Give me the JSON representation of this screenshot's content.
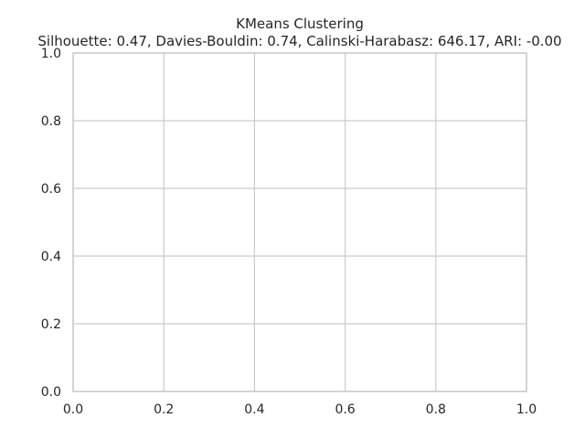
{
  "chart_data": {
    "type": "scatter",
    "title": "KMeans Clustering",
    "subtitle": "Silhouette: 0.47, Davies-Bouldin: 0.74, Calinski-Harabasz: 646.17, ARI: -0.00",
    "xlabel": "",
    "ylabel": "",
    "xlim": [
      0.0,
      1.0
    ],
    "ylim": [
      0.0,
      1.0
    ],
    "x_ticks": [
      "0.0",
      "0.2",
      "0.4",
      "0.6",
      "0.8",
      "1.0"
    ],
    "y_ticks": [
      "0.0",
      "0.2",
      "0.4",
      "0.6",
      "0.8",
      "1.0"
    ],
    "grid": true,
    "series": []
  },
  "colors": {
    "background": "#ffffff",
    "grid": "#cccccc",
    "text": "#262626"
  }
}
